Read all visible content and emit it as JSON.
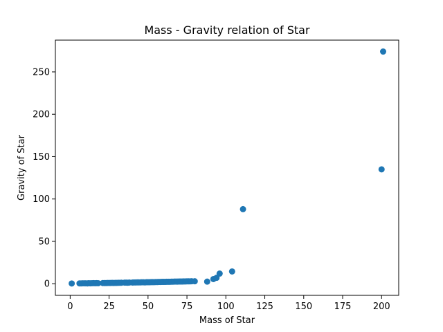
{
  "chart_data": {
    "type": "scatter",
    "title": "Mass - Gravity relation of Star",
    "xlabel": "Mass of Star",
    "ylabel": "Gravity of Star",
    "xlim": [
      -9.5,
      211
    ],
    "ylim": [
      -13.7,
      287.5
    ],
    "xticks": [
      0,
      25,
      50,
      75,
      100,
      125,
      150,
      175,
      200
    ],
    "yticks": [
      0,
      50,
      100,
      150,
      200,
      250
    ],
    "grid": false,
    "marker_color": "#1f77b4",
    "series": [
      {
        "x": [
          1,
          6,
          7,
          8,
          9,
          10,
          11,
          12,
          13,
          14,
          15,
          16,
          17,
          18,
          21,
          22,
          23,
          24,
          25,
          26,
          27,
          28,
          29,
          30,
          31,
          32,
          33,
          35,
          36,
          37,
          38,
          40,
          41,
          42,
          43,
          44,
          45,
          46,
          47,
          48,
          49,
          50,
          51,
          52,
          53,
          54,
          55,
          56,
          57,
          58,
          59,
          60,
          61,
          62,
          63,
          64,
          65,
          66,
          67,
          68,
          69,
          70,
          71,
          72,
          73,
          74,
          75,
          76,
          77,
          78,
          80,
          88,
          92,
          94,
          96,
          104,
          111,
          200,
          201
        ],
        "y": [
          0.3,
          0.4,
          0.4,
          0.5,
          0.5,
          0.5,
          0.4,
          0.6,
          0.5,
          0.6,
          0.7,
          0.6,
          0.7,
          0.6,
          0.8,
          0.8,
          0.8,
          0.9,
          0.9,
          0.9,
          1.0,
          0.9,
          1.0,
          1.0,
          1.1,
          1.1,
          1.2,
          1.3,
          1.3,
          1.2,
          1.4,
          1.4,
          1.5,
          1.5,
          1.6,
          1.6,
          1.6,
          1.7,
          1.7,
          1.6,
          1.8,
          1.8,
          1.8,
          1.9,
          1.9,
          1.9,
          2.0,
          2.0,
          2.1,
          2.1,
          2.2,
          2.2,
          2.2,
          2.3,
          2.3,
          2.3,
          2.4,
          2.4,
          2.5,
          2.5,
          2.5,
          2.6,
          2.6,
          2.6,
          2.7,
          2.7,
          2.8,
          2.8,
          2.8,
          2.9,
          2.9,
          2.5,
          5.5,
          7.0,
          12.0,
          14.5,
          88.0,
          135.0,
          274.0
        ]
      }
    ]
  }
}
